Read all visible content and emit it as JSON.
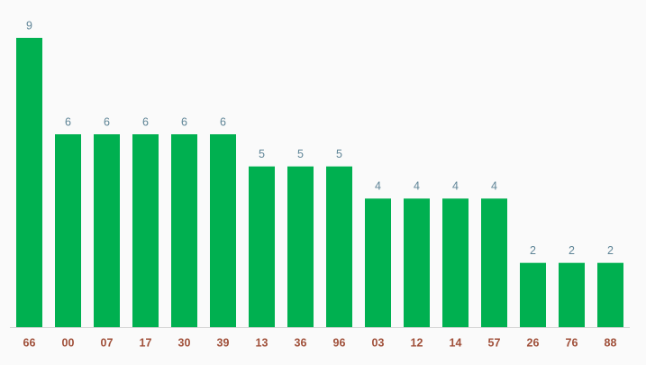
{
  "chart_data": {
    "type": "bar",
    "categories": [
      "66",
      "00",
      "07",
      "17",
      "30",
      "39",
      "13",
      "36",
      "96",
      "03",
      "12",
      "14",
      "57",
      "26",
      "76",
      "88"
    ],
    "values": [
      9,
      6,
      6,
      6,
      6,
      6,
      5,
      5,
      5,
      4,
      4,
      4,
      4,
      2,
      2,
      2
    ],
    "color": "#00b050"
  }
}
